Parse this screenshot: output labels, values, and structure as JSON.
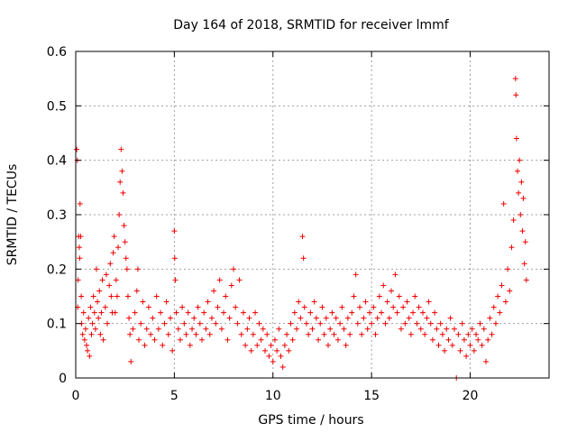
{
  "chart_data": {
    "type": "scatter",
    "title": "Day 164 of 2018, SRMTID for receiver lmmf",
    "xlabel": "GPS time / hours",
    "ylabel": "SRMTID / TECUs",
    "xlim": [
      0,
      24
    ],
    "ylim": [
      0,
      0.6
    ],
    "xticks": [
      0,
      5,
      10,
      15,
      20
    ],
    "yticks": [
      0,
      0.1,
      0.2,
      0.3,
      0.4,
      0.5,
      0.6
    ],
    "xtick_labels": [
      "0",
      "5",
      "10",
      "15",
      "20"
    ],
    "ytick_labels": [
      "0",
      "0.1",
      "0.2",
      "0.3",
      "0.4",
      "0.5",
      "0.6"
    ],
    "grid": true,
    "marker": "+",
    "color": "#ee0000",
    "series": [
      {
        "name": "SRMTID",
        "points": [
          [
            0.05,
            0.42
          ],
          [
            0.08,
            0.4
          ],
          [
            0.1,
            0.13
          ],
          [
            0.12,
            0.18
          ],
          [
            0.15,
            0.26
          ],
          [
            0.18,
            0.24
          ],
          [
            0.2,
            0.22
          ],
          [
            0.22,
            0.32
          ],
          [
            0.25,
            0.26
          ],
          [
            0.28,
            0.15
          ],
          [
            0.3,
            0.1
          ],
          [
            0.35,
            0.08
          ],
          [
            0.4,
            0.12
          ],
          [
            0.45,
            0.07
          ],
          [
            0.5,
            0.09
          ],
          [
            0.55,
            0.06
          ],
          [
            0.6,
            0.05
          ],
          [
            0.65,
            0.11
          ],
          [
            0.7,
            0.04
          ],
          [
            0.75,
            0.13
          ],
          [
            0.8,
            0.08
          ],
          [
            0.85,
            0.1
          ],
          [
            0.9,
            0.15
          ],
          [
            0.95,
            0.12
          ],
          [
            1.0,
            0.09
          ],
          [
            1.05,
            0.2
          ],
          [
            1.1,
            0.14
          ],
          [
            1.15,
            0.11
          ],
          [
            1.2,
            0.16
          ],
          [
            1.25,
            0.08
          ],
          [
            1.3,
            0.12
          ],
          [
            1.35,
            0.18
          ],
          [
            1.4,
            0.07
          ],
          [
            1.5,
            0.13
          ],
          [
            1.55,
            0.19
          ],
          [
            1.6,
            0.1
          ],
          [
            1.7,
            0.17
          ],
          [
            1.75,
            0.21
          ],
          [
            1.8,
            0.15
          ],
          [
            1.85,
            0.12
          ],
          [
            1.9,
            0.23
          ],
          [
            1.95,
            0.26
          ],
          [
            2.0,
            0.12
          ],
          [
            2.05,
            0.18
          ],
          [
            2.1,
            0.15
          ],
          [
            2.15,
            0.24
          ],
          [
            2.2,
            0.3
          ],
          [
            2.25,
            0.36
          ],
          [
            2.3,
            0.42
          ],
          [
            2.35,
            0.38
          ],
          [
            2.4,
            0.34
          ],
          [
            2.45,
            0.28
          ],
          [
            2.5,
            0.25
          ],
          [
            2.55,
            0.22
          ],
          [
            2.6,
            0.2
          ],
          [
            2.65,
            0.15
          ],
          [
            2.7,
            0.11
          ],
          [
            2.75,
            0.08
          ],
          [
            2.8,
            0.03
          ],
          [
            2.9,
            0.09
          ],
          [
            3.0,
            0.12
          ],
          [
            3.1,
            0.16
          ],
          [
            3.15,
            0.2
          ],
          [
            3.2,
            0.07
          ],
          [
            3.3,
            0.1
          ],
          [
            3.4,
            0.14
          ],
          [
            3.5,
            0.06
          ],
          [
            3.6,
            0.09
          ],
          [
            3.7,
            0.13
          ],
          [
            3.8,
            0.08
          ],
          [
            3.9,
            0.11
          ],
          [
            4.0,
            0.07
          ],
          [
            4.1,
            0.15
          ],
          [
            4.2,
            0.09
          ],
          [
            4.3,
            0.12
          ],
          [
            4.4,
            0.06
          ],
          [
            4.5,
            0.1
          ],
          [
            4.6,
            0.14
          ],
          [
            4.7,
            0.08
          ],
          [
            4.8,
            0.11
          ],
          [
            4.9,
            0.05
          ],
          [
            5.0,
            0.27
          ],
          [
            5.02,
            0.22
          ],
          [
            5.05,
            0.18
          ],
          [
            5.1,
            0.12
          ],
          [
            5.2,
            0.09
          ],
          [
            5.3,
            0.07
          ],
          [
            5.4,
            0.13
          ],
          [
            5.5,
            0.1
          ],
          [
            5.6,
            0.08
          ],
          [
            5.7,
            0.12
          ],
          [
            5.8,
            0.06
          ],
          [
            5.9,
            0.09
          ],
          [
            6.0,
            0.11
          ],
          [
            6.1,
            0.08
          ],
          [
            6.2,
            0.13
          ],
          [
            6.3,
            0.1
          ],
          [
            6.4,
            0.07
          ],
          [
            6.5,
            0.12
          ],
          [
            6.6,
            0.09
          ],
          [
            6.7,
            0.14
          ],
          [
            6.8,
            0.08
          ],
          [
            6.9,
            0.11
          ],
          [
            7.0,
            0.16
          ],
          [
            7.1,
            0.1
          ],
          [
            7.2,
            0.13
          ],
          [
            7.3,
            0.18
          ],
          [
            7.4,
            0.09
          ],
          [
            7.5,
            0.12
          ],
          [
            7.6,
            0.15
          ],
          [
            7.7,
            0.07
          ],
          [
            7.8,
            0.11
          ],
          [
            7.9,
            0.17
          ],
          [
            8.0,
            0.2
          ],
          [
            8.1,
            0.13
          ],
          [
            8.2,
            0.1
          ],
          [
            8.3,
            0.18
          ],
          [
            8.4,
            0.08
          ],
          [
            8.5,
            0.12
          ],
          [
            8.6,
            0.06
          ],
          [
            8.7,
            0.09
          ],
          [
            8.8,
            0.11
          ],
          [
            8.9,
            0.05
          ],
          [
            9.0,
            0.08
          ],
          [
            9.1,
            0.12
          ],
          [
            9.2,
            0.06
          ],
          [
            9.3,
            0.1
          ],
          [
            9.4,
            0.07
          ],
          [
            9.5,
            0.09
          ],
          [
            9.6,
            0.05
          ],
          [
            9.7,
            0.08
          ],
          [
            9.8,
            0.04
          ],
          [
            9.9,
            0.06
          ],
          [
            10.0,
            0.03
          ],
          [
            10.1,
            0.07
          ],
          [
            10.2,
            0.05
          ],
          [
            10.3,
            0.09
          ],
          [
            10.4,
            0.04
          ],
          [
            10.5,
            0.02
          ],
          [
            10.6,
            0.06
          ],
          [
            10.7,
            0.08
          ],
          [
            10.8,
            0.05
          ],
          [
            10.9,
            0.1
          ],
          [
            11.0,
            0.07
          ],
          [
            11.1,
            0.12
          ],
          [
            11.2,
            0.09
          ],
          [
            11.3,
            0.14
          ],
          [
            11.4,
            0.11
          ],
          [
            11.5,
            0.26
          ],
          [
            11.55,
            0.22
          ],
          [
            11.6,
            0.13
          ],
          [
            11.7,
            0.1
          ],
          [
            11.8,
            0.08
          ],
          [
            11.9,
            0.12
          ],
          [
            12.0,
            0.09
          ],
          [
            12.1,
            0.14
          ],
          [
            12.2,
            0.11
          ],
          [
            12.3,
            0.07
          ],
          [
            12.4,
            0.1
          ],
          [
            12.5,
            0.13
          ],
          [
            12.6,
            0.08
          ],
          [
            12.7,
            0.11
          ],
          [
            12.8,
            0.06
          ],
          [
            12.9,
            0.09
          ],
          [
            13.0,
            0.12
          ],
          [
            13.1,
            0.08
          ],
          [
            13.2,
            0.11
          ],
          [
            13.3,
            0.07
          ],
          [
            13.4,
            0.1
          ],
          [
            13.5,
            0.13
          ],
          [
            13.6,
            0.09
          ],
          [
            13.7,
            0.06
          ],
          [
            13.8,
            0.11
          ],
          [
            13.9,
            0.08
          ],
          [
            14.0,
            0.12
          ],
          [
            14.1,
            0.15
          ],
          [
            14.2,
            0.19
          ],
          [
            14.3,
            0.1
          ],
          [
            14.4,
            0.13
          ],
          [
            14.5,
            0.08
          ],
          [
            14.6,
            0.11
          ],
          [
            14.7,
            0.14
          ],
          [
            14.8,
            0.09
          ],
          [
            14.9,
            0.12
          ],
          [
            15.0,
            0.1
          ],
          [
            15.1,
            0.13
          ],
          [
            15.2,
            0.08
          ],
          [
            15.3,
            0.11
          ],
          [
            15.4,
            0.15
          ],
          [
            15.5,
            0.12
          ],
          [
            15.6,
            0.17
          ],
          [
            15.7,
            0.1
          ],
          [
            15.8,
            0.14
          ],
          [
            15.9,
            0.11
          ],
          [
            16.0,
            0.16
          ],
          [
            16.1,
            0.13
          ],
          [
            16.2,
            0.19
          ],
          [
            16.3,
            0.12
          ],
          [
            16.4,
            0.15
          ],
          [
            16.5,
            0.09
          ],
          [
            16.6,
            0.13
          ],
          [
            16.7,
            0.1
          ],
          [
            16.8,
            0.14
          ],
          [
            16.9,
            0.11
          ],
          [
            17.0,
            0.08
          ],
          [
            17.1,
            0.12
          ],
          [
            17.2,
            0.15
          ],
          [
            17.3,
            0.1
          ],
          [
            17.4,
            0.13
          ],
          [
            17.5,
            0.09
          ],
          [
            17.6,
            0.12
          ],
          [
            17.7,
            0.08
          ],
          [
            17.8,
            0.11
          ],
          [
            17.9,
            0.14
          ],
          [
            18.0,
            0.1
          ],
          [
            18.1,
            0.07
          ],
          [
            18.2,
            0.12
          ],
          [
            18.3,
            0.09
          ],
          [
            18.4,
            0.06
          ],
          [
            18.5,
            0.1
          ],
          [
            18.6,
            0.08
          ],
          [
            18.7,
            0.05
          ],
          [
            18.8,
            0.09
          ],
          [
            18.9,
            0.07
          ],
          [
            19.0,
            0.11
          ],
          [
            19.1,
            0.06
          ],
          [
            19.2,
            0.09
          ],
          [
            19.3,
            0.0
          ],
          [
            19.4,
            0.08
          ],
          [
            19.5,
            0.05
          ],
          [
            19.6,
            0.1
          ],
          [
            19.7,
            0.07
          ],
          [
            19.8,
            0.04
          ],
          [
            19.9,
            0.08
          ],
          [
            20.0,
            0.06
          ],
          [
            20.1,
            0.09
          ],
          [
            20.2,
            0.05
          ],
          [
            20.3,
            0.08
          ],
          [
            20.4,
            0.07
          ],
          [
            20.5,
            0.1
          ],
          [
            20.6,
            0.06
          ],
          [
            20.7,
            0.09
          ],
          [
            20.8,
            0.03
          ],
          [
            20.9,
            0.07
          ],
          [
            21.0,
            0.11
          ],
          [
            21.1,
            0.08
          ],
          [
            21.2,
            0.13
          ],
          [
            21.3,
            0.1
          ],
          [
            21.4,
            0.15
          ],
          [
            21.5,
            0.12
          ],
          [
            21.6,
            0.17
          ],
          [
            21.7,
            0.32
          ],
          [
            21.8,
            0.14
          ],
          [
            21.9,
            0.2
          ],
          [
            22.0,
            0.16
          ],
          [
            22.1,
            0.24
          ],
          [
            22.2,
            0.29
          ],
          [
            22.3,
            0.55
          ],
          [
            22.32,
            0.52
          ],
          [
            22.35,
            0.44
          ],
          [
            22.4,
            0.38
          ],
          [
            22.45,
            0.34
          ],
          [
            22.5,
            0.4
          ],
          [
            22.55,
            0.3
          ],
          [
            22.6,
            0.36
          ],
          [
            22.65,
            0.27
          ],
          [
            22.7,
            0.33
          ],
          [
            22.75,
            0.21
          ],
          [
            22.8,
            0.25
          ],
          [
            22.85,
            0.18
          ]
        ]
      }
    ]
  }
}
